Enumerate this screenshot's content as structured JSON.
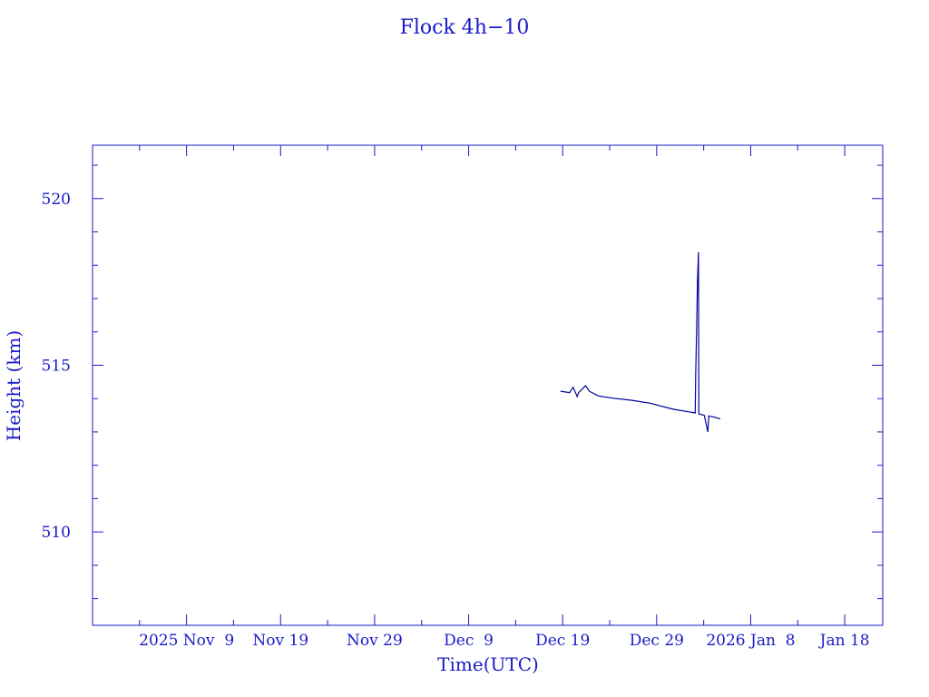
{
  "chart_data": {
    "type": "line",
    "title": "Flock 4h−10",
    "xlabel": "Time(UTC)",
    "ylabel": "Height (km)",
    "xlim": [
      "2025-10-30T00:00",
      "2026-01-22T01:00"
    ],
    "ylim": [
      507.2,
      521.6
    ],
    "grid": false,
    "x_ticks": [
      {
        "date": "2025-11-09",
        "label": "2025 Nov  9"
      },
      {
        "date": "2025-11-19",
        "label": "Nov 19"
      },
      {
        "date": "2025-11-29",
        "label": "Nov 29"
      },
      {
        "date": "2025-12-09",
        "label": "Dec  9"
      },
      {
        "date": "2025-12-19",
        "label": "Dec 19"
      },
      {
        "date": "2025-12-29",
        "label": "Dec 29"
      },
      {
        "date": "2026-01-08",
        "label": "2026 Jan  8"
      },
      {
        "date": "2026-01-18",
        "label": "Jan 18"
      }
    ],
    "y_ticks": [
      {
        "value": 510,
        "label": "510"
      },
      {
        "value": 515,
        "label": "515"
      },
      {
        "value": 520,
        "label": "520"
      }
    ],
    "colors": {
      "axes": "#1a1ac8",
      "line": "#00009c"
    },
    "series": [
      {
        "x": [
          "2025-12-18T18:30",
          "2025-12-19T17:30",
          "2025-12-20T02:50",
          "2025-12-20T13:00",
          "2025-12-20T16:50",
          "2025-12-21T10:30",
          "2025-12-21T20:00",
          "2025-12-22T19:10",
          "2025-12-24T09:40",
          "2025-12-26T07:10",
          "2025-12-28T07:10",
          "2025-12-30T19:10",
          "2026-01-02T02:25",
          "2026-01-02T03:35",
          "2026-01-02T06:00",
          "2026-01-02T08:10",
          "2026-01-02T10:35",
          "2026-01-02T11:30",
          "2026-01-03T01:25",
          "2026-01-03T10:35",
          "2026-01-03T13:00",
          "2026-01-04T01:10",
          "2026-01-04T18:15"
        ],
        "y": [
          514.22,
          514.18,
          514.34,
          514.06,
          514.18,
          514.39,
          514.22,
          514.08,
          514.01,
          513.95,
          513.86,
          513.68,
          513.57,
          514.7,
          516.12,
          517.53,
          518.39,
          513.54,
          513.5,
          513.0,
          513.48,
          513.45,
          513.39
        ]
      }
    ]
  }
}
